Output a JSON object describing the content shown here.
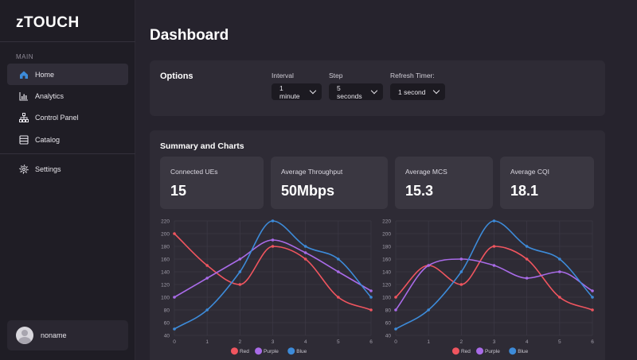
{
  "app": {
    "logo": "zTOUCH"
  },
  "sidebar": {
    "section_label": "MAIN",
    "items": [
      {
        "label": "Home",
        "icon": "home-icon"
      },
      {
        "label": "Analytics",
        "icon": "bar-chart-icon"
      },
      {
        "label": "Control Panel",
        "icon": "sitemap-icon"
      },
      {
        "label": "Catalog",
        "icon": "catalog-icon"
      },
      {
        "label": "Settings",
        "icon": "gear-icon"
      }
    ],
    "user": {
      "name": "noname"
    }
  },
  "page": {
    "title": "Dashboard"
  },
  "options": {
    "title": "Options",
    "interval": {
      "label": "Interval",
      "value": "1 minute"
    },
    "step": {
      "label": "Step",
      "value": "5 seconds"
    },
    "refresh": {
      "label": "Refresh Timer:",
      "value": "1 second"
    }
  },
  "summary": {
    "title": "Summary and Charts",
    "stats": [
      {
        "label": "Connected UEs",
        "value": "15"
      },
      {
        "label": "Average Throughput",
        "value": "50Mbps"
      },
      {
        "label": "Average MCS",
        "value": "15.3"
      },
      {
        "label": "Average CQI",
        "value": "18.1"
      }
    ]
  },
  "colors": {
    "accent": "#3d8bd9",
    "red": "#f0555f",
    "purple": "#a96be8",
    "blue": "#3d8bd9"
  },
  "chart_data": [
    {
      "type": "line",
      "x": [
        0,
        1,
        2,
        3,
        4,
        5,
        6
      ],
      "ylim": [
        40,
        220
      ],
      "yticks": [
        40,
        60,
        80,
        100,
        120,
        140,
        160,
        180,
        200,
        220
      ],
      "grid": true,
      "legend": "bottom",
      "series": [
        {
          "name": "Red",
          "color": "#f0555f",
          "values": [
            200,
            150,
            120,
            180,
            160,
            100,
            80
          ]
        },
        {
          "name": "Purple",
          "color": "#a96be8",
          "values": [
            100,
            130,
            160,
            190,
            170,
            140,
            110
          ]
        },
        {
          "name": "Blue",
          "color": "#3d8bd9",
          "values": [
            50,
            80,
            140,
            220,
            180,
            160,
            100
          ]
        }
      ]
    },
    {
      "type": "line",
      "x": [
        0,
        1,
        2,
        3,
        4,
        5,
        6
      ],
      "ylim": [
        40,
        220
      ],
      "yticks": [
        40,
        60,
        80,
        100,
        120,
        140,
        160,
        180,
        200,
        220
      ],
      "grid": true,
      "legend": "bottom",
      "series": [
        {
          "name": "Red",
          "color": "#f0555f",
          "values": [
            100,
            150,
            120,
            180,
            160,
            100,
            80
          ]
        },
        {
          "name": "Purple",
          "color": "#a96be8",
          "values": [
            80,
            150,
            160,
            150,
            130,
            140,
            110
          ]
        },
        {
          "name": "Blue",
          "color": "#3d8bd9",
          "values": [
            50,
            80,
            140,
            220,
            180,
            160,
            100
          ]
        }
      ]
    }
  ]
}
